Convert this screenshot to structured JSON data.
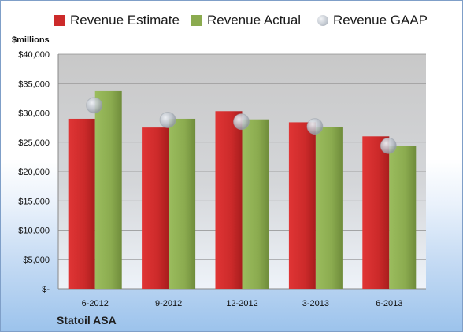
{
  "legend": {
    "estimate": "Revenue Estimate",
    "actual": "Revenue Actual",
    "gaap": "Revenue GAAP"
  },
  "units_label": "$millions",
  "company": "Statoil ASA",
  "colors": {
    "estimate": "#cc2a2a",
    "actual": "#8bab4f",
    "gaap": "#b9bfc8",
    "plot_bg": "#cfcfcf"
  },
  "chart_data": {
    "type": "bar",
    "categories": [
      "6-2012",
      "9-2012",
      "12-2012",
      "3-2013",
      "6-2013"
    ],
    "series": [
      {
        "name": "Revenue Estimate",
        "values": [
          29000,
          27500,
          30300,
          28400,
          26000
        ]
      },
      {
        "name": "Revenue Actual",
        "values": [
          33700,
          29000,
          28900,
          27600,
          24300
        ]
      },
      {
        "name": "Revenue GAAP",
        "values": [
          31300,
          28800,
          28500,
          27700,
          24400
        ],
        "style": "marker"
      }
    ],
    "ylim": [
      0,
      40000
    ],
    "yticks": [
      0,
      5000,
      10000,
      15000,
      20000,
      25000,
      30000,
      35000,
      40000
    ],
    "ytick_labels": [
      "$-",
      "$5,000",
      "$10,000",
      "$15,000",
      "$20,000",
      "$25,000",
      "$30,000",
      "$35,000",
      "$40,000"
    ],
    "ylabel": "$millions",
    "grid": true,
    "legend_position": "top"
  }
}
